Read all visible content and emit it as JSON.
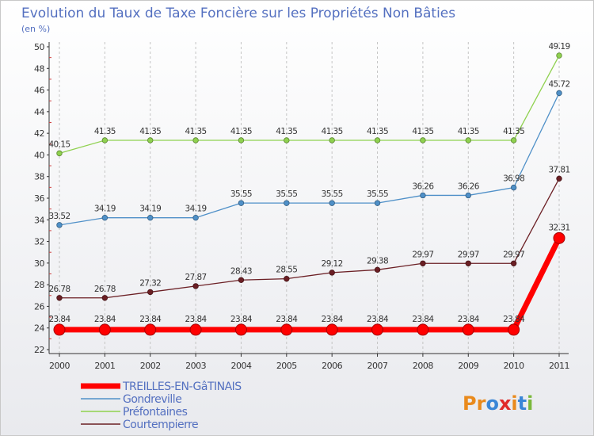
{
  "chart_data": {
    "type": "line",
    "title": "Evolution du Taux de Taxe Foncière sur les Propriétés Non Bâties",
    "ylabel": "(en %)",
    "xlabel": "",
    "ylim": [
      22,
      50
    ],
    "yticks": [
      22,
      24,
      26,
      28,
      30,
      32,
      34,
      36,
      38,
      40,
      42,
      44,
      46,
      48,
      50
    ],
    "categories": [
      "2000",
      "2001",
      "2002",
      "2003",
      "2004",
      "2005",
      "2006",
      "2007",
      "2008",
      "2009",
      "2010",
      "2011"
    ],
    "grid": "vertical",
    "legend": "bottom-left",
    "series": [
      {
        "name": "TREILLES-EN-GâTINAIS",
        "color": "#ff0000",
        "emphasis": true,
        "values": [
          23.84,
          23.84,
          23.84,
          23.84,
          23.84,
          23.84,
          23.84,
          23.84,
          23.84,
          23.84,
          23.84,
          32.31
        ],
        "labels": [
          "23.84",
          "23.84",
          "23.84",
          "23.84",
          "23.84",
          "23.84",
          "23.84",
          "23.84",
          "23.84",
          "23.84",
          "23.84",
          "32.31"
        ]
      },
      {
        "name": "Gondreville",
        "color": "#4f90c8",
        "emphasis": false,
        "values": [
          33.52,
          34.19,
          34.19,
          34.19,
          35.55,
          35.55,
          35.55,
          35.55,
          36.26,
          36.26,
          36.98,
          45.72
        ],
        "labels": [
          "33.52",
          "34.19",
          "34.19",
          "34.19",
          "35.55",
          "35.55",
          "35.55",
          "35.55",
          "36.26",
          "36.26",
          "36.98",
          "45.72"
        ]
      },
      {
        "name": "Préfontaines",
        "color": "#8fd14f",
        "emphasis": false,
        "values": [
          40.15,
          41.35,
          41.35,
          41.35,
          41.35,
          41.35,
          41.35,
          41.35,
          41.35,
          41.35,
          41.35,
          49.19
        ],
        "labels": [
          "40.15",
          "41.35",
          "41.35",
          "41.35",
          "41.35",
          "41.35",
          "41.35",
          "41.35",
          "41.35",
          "41.35",
          "41.35",
          "49.19"
        ]
      },
      {
        "name": "Courtempierre",
        "color": "#6b1f24",
        "emphasis": false,
        "values": [
          26.78,
          26.78,
          27.32,
          27.87,
          28.43,
          28.55,
          29.12,
          29.38,
          29.97,
          29.97,
          29.97,
          37.81
        ],
        "labels": [
          "26.78",
          "26.78",
          "27.32",
          "27.87",
          "28.43",
          "28.55",
          "29.12",
          "29.38",
          "29.97",
          "29.97",
          "29.97",
          "37.81"
        ]
      }
    ]
  },
  "branding": {
    "logo_text": "Proxiti",
    "letters": [
      "P",
      "r",
      "o",
      "x",
      "i",
      "t",
      "i"
    ],
    "letter_colors": [
      "#e98a1c",
      "#e98a1c",
      "#3a86d6",
      "#e02a2a",
      "#e98a1c",
      "#3a86d6",
      "#7ab83c"
    ]
  }
}
